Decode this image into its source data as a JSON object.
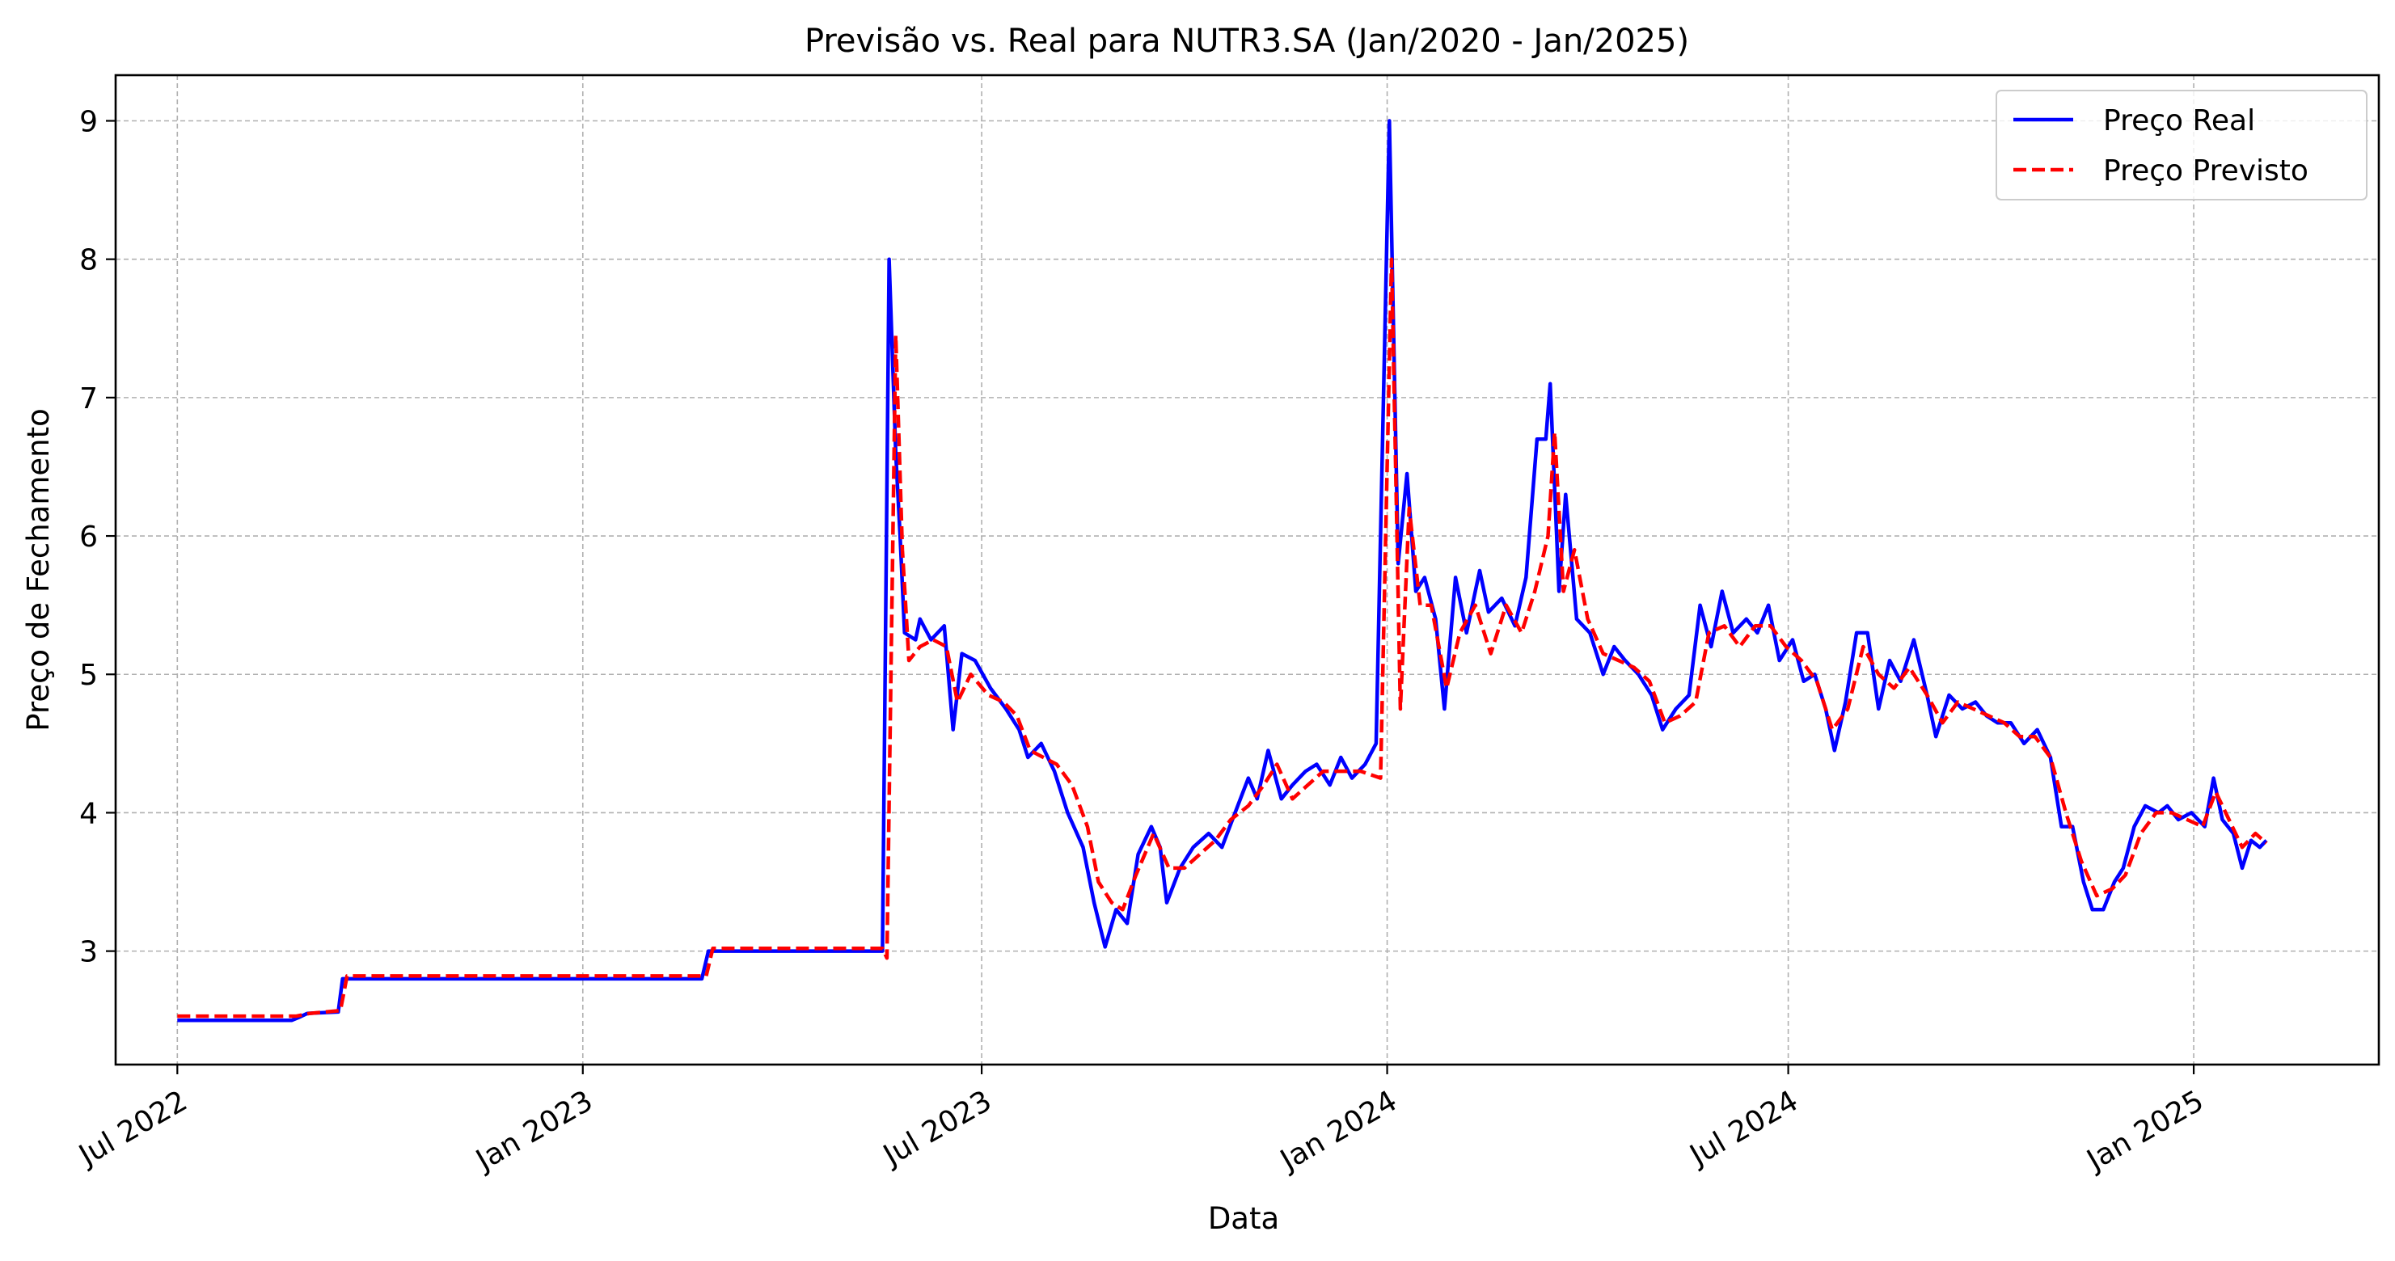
{
  "chart_data": {
    "type": "line",
    "title": "Previsão vs. Real para NUTR3.SA (Jan/2020 - Jan/2025)",
    "xlabel": "Data",
    "ylabel": "Preço de Fechamento",
    "x_type": "date",
    "xlim": [
      "2022-06-03",
      "2025-03-26"
    ],
    "ylim": [
      2.18,
      9.33
    ],
    "xticks": [
      {
        "date": "2022-07-01",
        "label": "Jul 2022"
      },
      {
        "date": "2023-01-01",
        "label": "Jan 2023"
      },
      {
        "date": "2023-07-01",
        "label": "Jul 2023"
      },
      {
        "date": "2024-01-01",
        "label": "Jan 2024"
      },
      {
        "date": "2024-07-01",
        "label": "Jul 2024"
      },
      {
        "date": "2025-01-01",
        "label": "Jan 2025"
      }
    ],
    "yticks": [
      3,
      4,
      5,
      6,
      7,
      8,
      9
    ],
    "grid": true,
    "legend_position": "upper right",
    "series": [
      {
        "name": "Preço Real",
        "color": "#0000ff",
        "style": "solid",
        "points": [
          [
            "2022-07-01",
            2.5
          ],
          [
            "2022-08-22",
            2.5
          ],
          [
            "2022-08-25",
            2.52
          ],
          [
            "2022-08-29",
            2.55
          ],
          [
            "2022-09-12",
            2.56
          ],
          [
            "2022-09-14",
            2.8
          ],
          [
            "2023-02-24",
            2.8
          ],
          [
            "2023-02-27",
            3.0
          ],
          [
            "2023-05-17",
            3.0
          ],
          [
            "2023-05-20",
            8.0
          ],
          [
            "2023-05-23",
            6.6
          ],
          [
            "2023-05-25",
            6.0
          ],
          [
            "2023-05-27",
            5.3
          ],
          [
            "2023-06-01",
            5.25
          ],
          [
            "2023-06-03",
            5.4
          ],
          [
            "2023-06-08",
            5.25
          ],
          [
            "2023-06-14",
            5.35
          ],
          [
            "2023-06-18",
            4.6
          ],
          [
            "2023-06-22",
            5.15
          ],
          [
            "2023-06-28",
            5.1
          ],
          [
            "2023-07-05",
            4.9
          ],
          [
            "2023-07-12",
            4.75
          ],
          [
            "2023-07-18",
            4.6
          ],
          [
            "2023-07-22",
            4.4
          ],
          [
            "2023-07-28",
            4.5
          ],
          [
            "2023-08-03",
            4.3
          ],
          [
            "2023-08-09",
            4.0
          ],
          [
            "2023-08-16",
            3.75
          ],
          [
            "2023-08-21",
            3.35
          ],
          [
            "2023-08-26",
            3.03
          ],
          [
            "2023-08-31",
            3.3
          ],
          [
            "2023-09-05",
            3.2
          ],
          [
            "2023-09-10",
            3.7
          ],
          [
            "2023-09-16",
            3.9
          ],
          [
            "2023-09-20",
            3.75
          ],
          [
            "2023-09-23",
            3.35
          ],
          [
            "2023-09-29",
            3.6
          ],
          [
            "2023-10-05",
            3.75
          ],
          [
            "2023-10-12",
            3.85
          ],
          [
            "2023-10-18",
            3.75
          ],
          [
            "2023-10-24",
            4.0
          ],
          [
            "2023-10-30",
            4.25
          ],
          [
            "2023-11-03",
            4.1
          ],
          [
            "2023-11-08",
            4.45
          ],
          [
            "2023-11-14",
            4.1
          ],
          [
            "2023-11-19",
            4.2
          ],
          [
            "2023-11-25",
            4.3
          ],
          [
            "2023-11-30",
            4.35
          ],
          [
            "2023-12-06",
            4.2
          ],
          [
            "2023-12-11",
            4.4
          ],
          [
            "2023-12-16",
            4.25
          ],
          [
            "2023-12-22",
            4.35
          ],
          [
            "2023-12-27",
            4.5
          ],
          [
            "2024-01-02",
            9.0
          ],
          [
            "2024-01-06",
            5.8
          ],
          [
            "2024-01-10",
            6.45
          ],
          [
            "2024-01-14",
            5.6
          ],
          [
            "2024-01-18",
            5.7
          ],
          [
            "2024-01-23",
            5.4
          ],
          [
            "2024-01-27",
            4.75
          ],
          [
            "2024-02-01",
            5.7
          ],
          [
            "2024-02-06",
            5.3
          ],
          [
            "2024-02-12",
            5.75
          ],
          [
            "2024-02-16",
            5.45
          ],
          [
            "2024-02-22",
            5.55
          ],
          [
            "2024-02-28",
            5.35
          ],
          [
            "2024-03-04",
            5.7
          ],
          [
            "2024-03-09",
            6.7
          ],
          [
            "2024-03-13",
            6.7
          ],
          [
            "2024-03-15",
            7.1
          ],
          [
            "2024-03-19",
            5.6
          ],
          [
            "2024-03-22",
            6.3
          ],
          [
            "2024-03-27",
            5.4
          ],
          [
            "2024-04-02",
            5.3
          ],
          [
            "2024-04-08",
            5.0
          ],
          [
            "2024-04-13",
            5.2
          ],
          [
            "2024-04-18",
            5.1
          ],
          [
            "2024-04-24",
            5.0
          ],
          [
            "2024-04-30",
            4.85
          ],
          [
            "2024-05-05",
            4.6
          ],
          [
            "2024-05-11",
            4.75
          ],
          [
            "2024-05-17",
            4.85
          ],
          [
            "2024-05-22",
            5.5
          ],
          [
            "2024-05-27",
            5.2
          ],
          [
            "2024-06-01",
            5.6
          ],
          [
            "2024-06-06",
            5.3
          ],
          [
            "2024-06-12",
            5.4
          ],
          [
            "2024-06-17",
            5.3
          ],
          [
            "2024-06-22",
            5.5
          ],
          [
            "2024-06-27",
            5.1
          ],
          [
            "2024-07-03",
            5.25
          ],
          [
            "2024-07-08",
            4.95
          ],
          [
            "2024-07-13",
            5.0
          ],
          [
            "2024-07-18",
            4.75
          ],
          [
            "2024-07-22",
            4.45
          ],
          [
            "2024-07-27",
            4.8
          ],
          [
            "2024-08-01",
            5.3
          ],
          [
            "2024-08-06",
            5.3
          ],
          [
            "2024-08-11",
            4.75
          ],
          [
            "2024-08-16",
            5.1
          ],
          [
            "2024-08-21",
            4.95
          ],
          [
            "2024-08-27",
            5.25
          ],
          [
            "2024-09-02",
            4.85
          ],
          [
            "2024-09-06",
            4.55
          ],
          [
            "2024-09-12",
            4.85
          ],
          [
            "2024-09-18",
            4.75
          ],
          [
            "2024-09-24",
            4.8
          ],
          [
            "2024-09-29",
            4.7
          ],
          [
            "2024-10-04",
            4.65
          ],
          [
            "2024-10-10",
            4.65
          ],
          [
            "2024-10-16",
            4.5
          ],
          [
            "2024-10-22",
            4.6
          ],
          [
            "2024-10-28",
            4.4
          ],
          [
            "2024-11-02",
            3.9
          ],
          [
            "2024-11-07",
            3.9
          ],
          [
            "2024-11-12",
            3.5
          ],
          [
            "2024-11-16",
            3.3
          ],
          [
            "2024-11-21",
            3.3
          ],
          [
            "2024-11-26",
            3.5
          ],
          [
            "2024-11-30",
            3.6
          ],
          [
            "2024-12-05",
            3.9
          ],
          [
            "2024-12-10",
            4.05
          ],
          [
            "2024-12-16",
            4.0
          ],
          [
            "2024-12-20",
            4.05
          ],
          [
            "2024-12-25",
            3.95
          ],
          [
            "2024-12-31",
            4.0
          ],
          [
            "2025-01-06",
            3.9
          ],
          [
            "2025-01-10",
            4.25
          ],
          [
            "2025-01-14",
            3.95
          ],
          [
            "2025-01-19",
            3.85
          ],
          [
            "2025-01-23",
            3.6
          ],
          [
            "2025-01-27",
            3.8
          ],
          [
            "2025-01-31",
            3.75
          ],
          [
            "2025-02-03",
            3.8
          ]
        ]
      },
      {
        "name": "Preço Previsto",
        "color": "#ff0000",
        "style": "dashed",
        "points": [
          [
            "2022-07-01",
            2.53
          ],
          [
            "2022-08-24",
            2.53
          ],
          [
            "2022-08-30",
            2.55
          ],
          [
            "2022-09-13",
            2.57
          ],
          [
            "2022-09-16",
            2.82
          ],
          [
            "2023-02-26",
            2.82
          ],
          [
            "2023-03-01",
            3.02
          ],
          [
            "2023-05-17",
            3.02
          ],
          [
            "2023-05-19",
            2.95
          ],
          [
            "2023-05-23",
            7.45
          ],
          [
            "2023-05-26",
            5.9
          ],
          [
            "2023-05-29",
            5.1
          ],
          [
            "2023-06-03",
            5.2
          ],
          [
            "2023-06-09",
            5.25
          ],
          [
            "2023-06-15",
            5.2
          ],
          [
            "2023-06-20",
            4.8
          ],
          [
            "2023-06-26",
            5.0
          ],
          [
            "2023-07-04",
            4.85
          ],
          [
            "2023-07-11",
            4.8
          ],
          [
            "2023-07-17",
            4.7
          ],
          [
            "2023-07-23",
            4.45
          ],
          [
            "2023-07-29",
            4.4
          ],
          [
            "2023-08-04",
            4.35
          ],
          [
            "2023-08-11",
            4.2
          ],
          [
            "2023-08-18",
            3.9
          ],
          [
            "2023-08-23",
            3.5
          ],
          [
            "2023-08-29",
            3.35
          ],
          [
            "2023-09-03",
            3.3
          ],
          [
            "2023-09-09",
            3.55
          ],
          [
            "2023-09-17",
            3.85
          ],
          [
            "2023-09-24",
            3.6
          ],
          [
            "2023-10-01",
            3.6
          ],
          [
            "2023-10-08",
            3.7
          ],
          [
            "2023-10-15",
            3.8
          ],
          [
            "2023-10-22",
            3.95
          ],
          [
            "2023-10-30",
            4.05
          ],
          [
            "2023-11-06",
            4.2
          ],
          [
            "2023-11-12",
            4.35
          ],
          [
            "2023-11-19",
            4.1
          ],
          [
            "2023-11-26",
            4.2
          ],
          [
            "2023-12-03",
            4.3
          ],
          [
            "2023-12-12",
            4.3
          ],
          [
            "2023-12-20",
            4.3
          ],
          [
            "2023-12-29",
            4.25
          ],
          [
            "2024-01-03",
            8.0
          ],
          [
            "2024-01-07",
            4.75
          ],
          [
            "2024-01-11",
            6.2
          ],
          [
            "2024-01-16",
            5.5
          ],
          [
            "2024-01-21",
            5.5
          ],
          [
            "2024-01-28",
            4.9
          ],
          [
            "2024-02-03",
            5.3
          ],
          [
            "2024-02-10",
            5.5
          ],
          [
            "2024-02-17",
            5.15
          ],
          [
            "2024-02-24",
            5.5
          ],
          [
            "2024-03-02",
            5.3
          ],
          [
            "2024-03-08",
            5.6
          ],
          [
            "2024-03-14",
            6.0
          ],
          [
            "2024-03-17",
            6.75
          ],
          [
            "2024-03-21",
            5.6
          ],
          [
            "2024-03-26",
            5.9
          ],
          [
            "2024-04-01",
            5.4
          ],
          [
            "2024-04-08",
            5.15
          ],
          [
            "2024-04-15",
            5.1
          ],
          [
            "2024-04-22",
            5.05
          ],
          [
            "2024-04-29",
            4.95
          ],
          [
            "2024-05-06",
            4.65
          ],
          [
            "2024-05-13",
            4.7
          ],
          [
            "2024-05-20",
            4.8
          ],
          [
            "2024-05-26",
            5.3
          ],
          [
            "2024-06-02",
            5.35
          ],
          [
            "2024-06-09",
            5.2
          ],
          [
            "2024-06-16",
            5.35
          ],
          [
            "2024-06-23",
            5.35
          ],
          [
            "2024-06-30",
            5.2
          ],
          [
            "2024-07-07",
            5.1
          ],
          [
            "2024-07-14",
            4.95
          ],
          [
            "2024-07-21",
            4.6
          ],
          [
            "2024-07-28",
            4.75
          ],
          [
            "2024-08-04",
            5.2
          ],
          [
            "2024-08-11",
            5.0
          ],
          [
            "2024-08-18",
            4.9
          ],
          [
            "2024-08-25",
            5.05
          ],
          [
            "2024-09-02",
            4.85
          ],
          [
            "2024-09-09",
            4.65
          ],
          [
            "2024-09-16",
            4.8
          ],
          [
            "2024-09-23",
            4.75
          ],
          [
            "2024-09-30",
            4.7
          ],
          [
            "2024-10-07",
            4.65
          ],
          [
            "2024-10-14",
            4.55
          ],
          [
            "2024-10-21",
            4.55
          ],
          [
            "2024-10-28",
            4.4
          ],
          [
            "2024-11-04",
            4.0
          ],
          [
            "2024-11-11",
            3.65
          ],
          [
            "2024-11-18",
            3.4
          ],
          [
            "2024-11-25",
            3.45
          ],
          [
            "2024-12-01",
            3.55
          ],
          [
            "2024-12-08",
            3.85
          ],
          [
            "2024-12-15",
            4.0
          ],
          [
            "2024-12-22",
            4.0
          ],
          [
            "2024-12-29",
            3.95
          ],
          [
            "2025-01-05",
            3.9
          ],
          [
            "2025-01-11",
            4.15
          ],
          [
            "2025-01-17",
            3.95
          ],
          [
            "2025-01-23",
            3.75
          ],
          [
            "2025-01-29",
            3.85
          ],
          [
            "2025-02-03",
            3.78
          ]
        ]
      }
    ]
  }
}
